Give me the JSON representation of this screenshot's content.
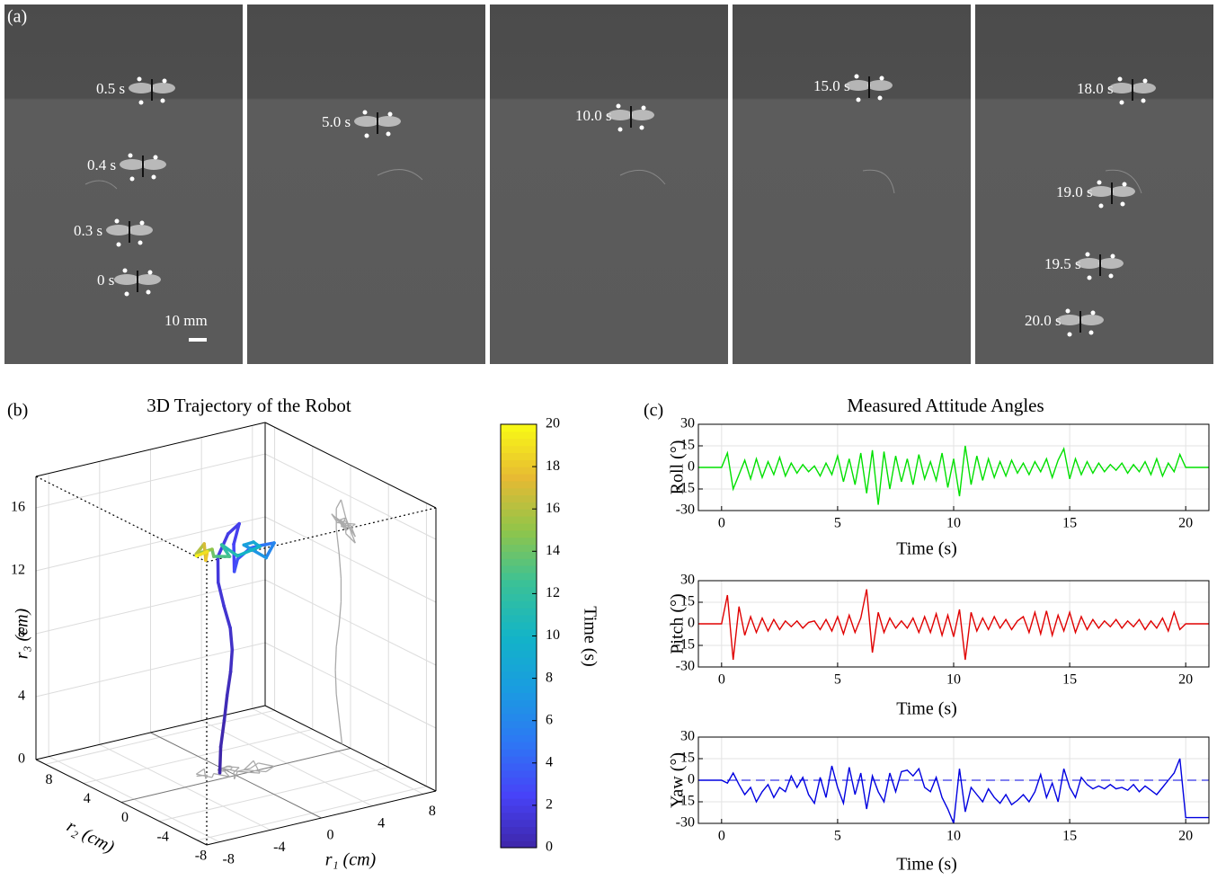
{
  "figure_labels": {
    "a": "(a)",
    "b": "(b)",
    "c": "(c)"
  },
  "photo_panel": {
    "time_labels": [
      "0.5 s",
      "0.4 s",
      "0.3 s",
      "0 s",
      "5.0 s",
      "10.0 s",
      "15.0 s",
      "18.0 s",
      "19.0 s",
      "19.5 s",
      "20.0 s"
    ],
    "scale_bar": "10 mm"
  },
  "chart_data": [
    {
      "type": "line3d",
      "title": "3D Trajectory of the Robot",
      "x_label": "r₁ (cm)",
      "y_label": "r₂ (cm)",
      "z_label": "r₃ (cm)",
      "t": [
        0,
        0.2,
        0.4,
        0.6,
        0.8,
        1,
        1.2,
        1.4,
        1.6,
        1.8,
        2,
        2.2,
        2.5,
        3,
        3.5,
        4,
        5,
        6,
        7,
        8,
        9,
        10,
        11,
        12,
        13,
        14,
        15,
        16,
        17,
        18,
        19,
        20
      ],
      "x": [
        -0.6,
        -0.3,
        0.2,
        0.5,
        0.7,
        0.6,
        0.3,
        -0.2,
        -0.5,
        -0.3,
        0.5,
        1,
        0.2,
        -0.5,
        0.5,
        1.5,
        2.5,
        3,
        2,
        1,
        2.5,
        1.5,
        0.5,
        0,
        -0.5,
        -1,
        -1.5,
        -2,
        -1,
        -2,
        -1.5,
        -2.2
      ],
      "y": [
        0.9,
        1.2,
        1.5,
        1.6,
        1.5,
        1.2,
        1,
        1,
        1.2,
        1.5,
        1.5,
        1,
        0.5,
        -0.5,
        0.5,
        0.5,
        1,
        0,
        -0.5,
        0.5,
        1.5,
        -0.5,
        0.5,
        1.5,
        0,
        1,
        0.5,
        1.5,
        2,
        0.5,
        1,
        1.2
      ],
      "z": [
        0,
        1.5,
        3,
        4.5,
        6,
        7.5,
        9,
        10.5,
        12,
        13.5,
        14.8,
        15.5,
        14.5,
        13.2,
        13.5,
        14,
        13.8,
        14.2,
        13.6,
        14.3,
        13.9,
        14.4,
        13.7,
        14.2,
        14,
        13.8,
        14.5,
        14,
        14.3,
        13.9,
        14.2,
        14
      ],
      "xlim": [
        -9,
        9
      ],
      "ylim": [
        -9,
        9
      ],
      "zlim": [
        0,
        18
      ],
      "xticks": [
        -8,
        -4,
        0,
        4,
        8
      ],
      "yticks": [
        -8,
        -4,
        0,
        4,
        8
      ],
      "zticks": [
        0,
        4,
        8,
        12,
        16
      ],
      "colormap": "parula",
      "clim": [
        0,
        20
      ],
      "colorbar_ticks": [
        0,
        2,
        4,
        6,
        8,
        10,
        12,
        14,
        16,
        18,
        20
      ],
      "colorbar_label": "Time (s)",
      "grid": true
    },
    {
      "type": "line",
      "title": "Measured Attitude Angles",
      "x_label": "Time (s)",
      "y_label": "Roll (°)",
      "x": [
        -1,
        0,
        0.25,
        0.5,
        0.75,
        1,
        1.25,
        1.5,
        1.75,
        2,
        2.25,
        2.5,
        2.75,
        3,
        3.25,
        3.5,
        3.75,
        4,
        4.25,
        4.5,
        4.75,
        5,
        5.25,
        5.5,
        5.75,
        6,
        6.25,
        6.5,
        6.75,
        7,
        7.25,
        7.5,
        7.75,
        8,
        8.25,
        8.5,
        8.75,
        9,
        9.25,
        9.5,
        9.75,
        10,
        10.25,
        10.5,
        10.75,
        11,
        11.25,
        11.5,
        11.75,
        12,
        12.25,
        12.5,
        12.75,
        13,
        13.25,
        13.5,
        13.75,
        14,
        14.25,
        14.5,
        14.75,
        15,
        15.25,
        15.5,
        15.75,
        16,
        16.25,
        16.5,
        16.75,
        17,
        17.25,
        17.5,
        17.75,
        18,
        18.25,
        18.5,
        18.75,
        19,
        19.25,
        19.5,
        19.75,
        20,
        21
      ],
      "series": [
        {
          "color": "#00e000",
          "values": [
            0,
            0,
            10,
            -15,
            -5,
            5,
            -8,
            6,
            -7,
            4,
            -5,
            7,
            -6,
            3,
            -4,
            2,
            -3,
            1,
            -6,
            3,
            -5,
            8,
            -10,
            6,
            -12,
            10,
            -18,
            12,
            -26,
            11,
            -15,
            8,
            -10,
            6,
            -12,
            9,
            -8,
            4,
            -9,
            10,
            -14,
            6,
            -20,
            15,
            -12,
            8,
            -9,
            6,
            -7,
            4,
            -6,
            5,
            -4,
            3,
            -5,
            4,
            -3,
            6,
            -7,
            5,
            13,
            -8,
            6,
            -5,
            4,
            -4,
            3,
            -3,
            2,
            -2,
            3,
            -4,
            2,
            -3,
            4,
            -5,
            6,
            -6,
            3,
            -3,
            9,
            0,
            0
          ]
        }
      ],
      "xlim": [
        -1,
        21
      ],
      "ylim": [
        -30,
        30
      ],
      "xticks": [
        0,
        5,
        10,
        15,
        20
      ],
      "yticks": [
        -30,
        -15,
        0,
        15,
        30
      ],
      "grid": true
    },
    {
      "type": "line",
      "x_label": "Time (s)",
      "y_label": "Pitch (°)",
      "x": [
        -1,
        0,
        0.25,
        0.5,
        0.75,
        1,
        1.25,
        1.5,
        1.75,
        2,
        2.25,
        2.5,
        2.75,
        3,
        3.25,
        3.5,
        3.75,
        4,
        4.25,
        4.5,
        4.75,
        5,
        5.25,
        5.5,
        5.75,
        6,
        6.25,
        6.5,
        6.75,
        7,
        7.25,
        7.5,
        7.75,
        8,
        8.25,
        8.5,
        8.75,
        9,
        9.25,
        9.5,
        9.75,
        10,
        10.25,
        10.5,
        10.75,
        11,
        11.25,
        11.5,
        11.75,
        12,
        12.25,
        12.5,
        12.75,
        13,
        13.25,
        13.5,
        13.75,
        14,
        14.25,
        14.5,
        14.75,
        15,
        15.25,
        15.5,
        15.75,
        16,
        16.25,
        16.5,
        16.75,
        17,
        17.25,
        17.5,
        17.75,
        18,
        18.25,
        18.5,
        18.75,
        19,
        19.25,
        19.5,
        19.75,
        20,
        21
      ],
      "series": [
        {
          "color": "#e00000",
          "values": [
            0,
            0,
            20,
            -25,
            12,
            -8,
            5,
            -6,
            4,
            -5,
            3,
            -4,
            2,
            -2,
            2,
            -3,
            1,
            2,
            -4,
            3,
            -5,
            5,
            -7,
            6,
            -6,
            4,
            24,
            -20,
            8,
            -6,
            4,
            -3,
            2,
            -3,
            4,
            -6,
            5,
            -6,
            7,
            -8,
            6,
            -9,
            10,
            -25,
            8,
            -5,
            4,
            -4,
            5,
            -3,
            3,
            -4,
            2,
            5,
            -6,
            8,
            -7,
            9,
            -8,
            6,
            -5,
            8,
            -6,
            5,
            -4,
            3,
            -3,
            2,
            -2,
            3,
            -3,
            2,
            -2,
            3,
            -4,
            2,
            -3,
            4,
            -5,
            8,
            -4,
            0,
            0
          ]
        }
      ],
      "xlim": [
        -1,
        21
      ],
      "ylim": [
        -30,
        30
      ],
      "xticks": [
        0,
        5,
        10,
        15,
        20
      ],
      "yticks": [
        -30,
        -15,
        0,
        15,
        30
      ],
      "grid": true
    },
    {
      "type": "line",
      "x_label": "Time (s)",
      "y_label": "Yaw (°)",
      "x": [
        -1,
        0,
        0.25,
        0.5,
        0.75,
        1,
        1.25,
        1.5,
        1.75,
        2,
        2.25,
        2.5,
        2.75,
        3,
        3.25,
        3.5,
        3.75,
        4,
        4.25,
        4.5,
        4.75,
        5,
        5.25,
        5.5,
        5.75,
        6,
        6.25,
        6.5,
        6.75,
        7,
        7.25,
        7.5,
        7.75,
        8,
        8.25,
        8.5,
        8.75,
        9,
        9.25,
        9.5,
        9.75,
        10,
        10.25,
        10.5,
        10.75,
        11,
        11.25,
        11.5,
        11.75,
        12,
        12.25,
        12.5,
        12.75,
        13,
        13.25,
        13.5,
        13.75,
        14,
        14.25,
        14.5,
        14.75,
        15,
        15.25,
        15.5,
        15.75,
        16,
        16.25,
        16.5,
        16.75,
        17,
        17.25,
        17.5,
        17.75,
        18,
        18.25,
        18.5,
        18.75,
        19,
        19.25,
        19.5,
        19.75,
        20,
        21
      ],
      "series": [
        {
          "color": "#0000e0",
          "values": [
            0,
            0,
            -2,
            5,
            -3,
            -10,
            -5,
            -15,
            -8,
            -3,
            -12,
            -5,
            -8,
            3,
            -5,
            2,
            -10,
            -16,
            2,
            -12,
            10,
            -5,
            -16,
            9,
            -10,
            5,
            -20,
            3,
            -8,
            -15,
            5,
            -8,
            6,
            7,
            3,
            8,
            -5,
            -8,
            2,
            -12,
            -20,
            -30,
            8,
            -22,
            -5,
            -10,
            -15,
            -6,
            -12,
            -16,
            -10,
            -17,
            -14,
            -10,
            -15,
            -8,
            4,
            -12,
            -2,
            -15,
            8,
            -5,
            -12,
            2,
            -3,
            -6,
            -4,
            -6,
            -3,
            -6,
            -5,
            -7,
            -3,
            -8,
            -4,
            -7,
            -10,
            -5,
            0,
            5,
            15,
            -26,
            -26
          ]
        }
      ],
      "reference_line": 0,
      "xlim": [
        -1,
        21
      ],
      "ylim": [
        -30,
        30
      ],
      "xticks": [
        0,
        5,
        10,
        15,
        20
      ],
      "yticks": [
        -30,
        -15,
        0,
        15,
        30
      ],
      "grid": true
    }
  ]
}
